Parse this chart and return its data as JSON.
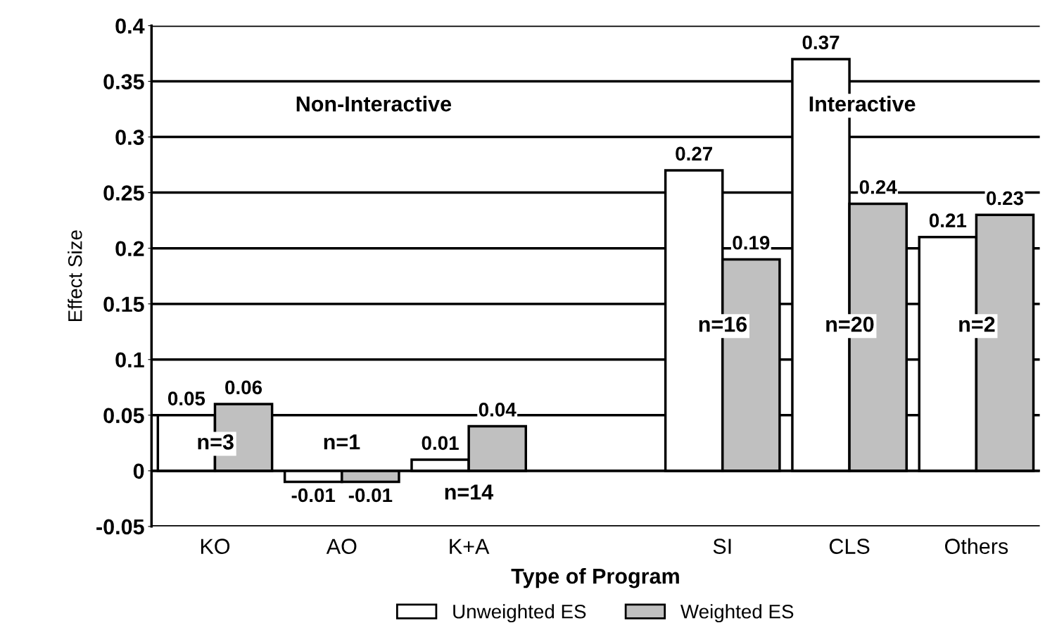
{
  "chart_data": {
    "type": "bar",
    "xlabel": "Type of Program",
    "ylabel": "Effect Size",
    "categories": [
      "KO",
      "AO",
      "K+A",
      null,
      "SI",
      "CLS",
      "Others"
    ],
    "series": [
      {
        "name": "Unweighted ES",
        "color": "#ffffff",
        "values": [
          0.05,
          -0.01,
          0.01,
          null,
          0.27,
          0.37,
          0.21
        ]
      },
      {
        "name": "Weighted ES",
        "color": "#c0c0c0",
        "values": [
          0.06,
          -0.01,
          0.04,
          null,
          0.19,
          0.24,
          0.23
        ]
      }
    ],
    "ylim": [
      -0.05,
      0.4
    ],
    "yticks": [
      -0.05,
      0,
      0.05,
      0.1,
      0.15,
      0.2,
      0.25,
      0.3,
      0.35,
      0.4
    ],
    "grid": "y",
    "legend": "bottom",
    "data_labels": true,
    "annotations": [
      "Non-Interactive",
      "Interactive",
      "n=3",
      "n=1",
      "n=14",
      "n=16",
      "n=20",
      "n=2"
    ]
  }
}
